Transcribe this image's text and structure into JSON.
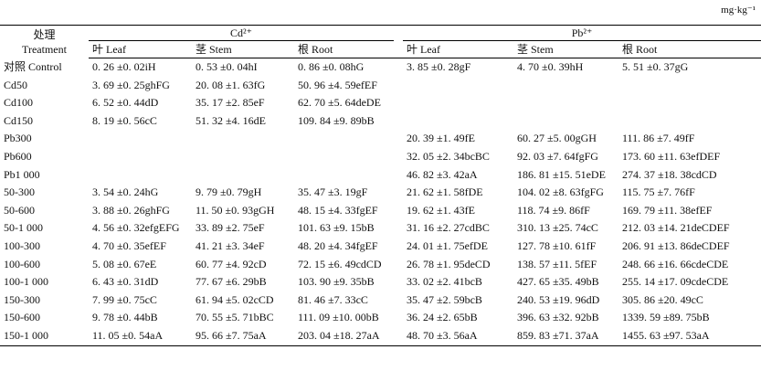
{
  "unit": "mg·kg⁻¹",
  "header": {
    "treatment_cn": "处理",
    "treatment_en": "Treatment",
    "groups": [
      "Cd²⁺",
      "Pb²⁺"
    ],
    "columns": [
      "叶 Leaf",
      "茎 Stem",
      "根 Root",
      "叶 Leaf",
      "茎 Stem",
      "根 Root"
    ]
  },
  "table": {
    "rows": [
      [
        "对照 Control",
        "0. 26 ±0. 02iH",
        "0. 53 ±0. 04hI",
        "0. 86 ±0. 08hG",
        "3. 85 ±0. 28gF",
        "4. 70 ±0. 39hH",
        "5. 51 ±0. 37gG"
      ],
      [
        "Cd50",
        "3. 69 ±0. 25ghFG",
        "20. 08 ±1. 63fG",
        "50. 96 ±4. 59efEF",
        null,
        null,
        null
      ],
      [
        "Cd100",
        "6. 52 ±0. 44dD",
        "35. 17 ±2. 85eF",
        "62. 70 ±5. 64deDE",
        null,
        null,
        null
      ],
      [
        "Cd150",
        "8. 19 ±0. 56cC",
        "51. 32 ±4. 16dE",
        "109. 84 ±9. 89bB",
        null,
        null,
        null
      ],
      [
        "Pb300",
        null,
        null,
        null,
        "20. 39 ±1. 49fE",
        "60. 27 ±5. 00gGH",
        "111. 86 ±7. 49fF"
      ],
      [
        "Pb600",
        null,
        null,
        null,
        "32. 05 ±2. 34bcBC",
        "92. 03 ±7. 64fgFG",
        "173. 60 ±11. 63efDEF"
      ],
      [
        "Pb1 000",
        null,
        null,
        null,
        "46. 82 ±3. 42aA",
        "186. 81 ±15. 51eDE",
        "274. 37 ±18. 38cdCD"
      ],
      [
        "50-300",
        "3. 54 ±0. 24hG",
        "9. 79 ±0. 79gH",
        "35. 47 ±3. 19gF",
        "21. 62 ±1. 58fDE",
        "104. 02 ±8. 63fgFG",
        "115. 75 ±7. 76fF"
      ],
      [
        "50-600",
        "3. 88 ±0. 26ghFG",
        "11. 50 ±0. 93gGH",
        "48. 15 ±4. 33fgEF",
        "19. 62 ±1. 43fE",
        "118. 74 ±9. 86fF",
        "169. 79 ±11. 38efEF"
      ],
      [
        "50-1 000",
        "4. 56 ±0. 32efgEFG",
        "33. 89 ±2. 75eF",
        "101. 63 ±9. 15bB",
        "31. 16 ±2. 27cdBC",
        "310. 13 ±25. 74cC",
        "212. 03 ±14. 21deCDEF"
      ],
      [
        "100-300",
        "4. 70 ±0. 35efEF",
        "41. 21 ±3. 34eF",
        "48. 20 ±4. 34fgEF",
        "24. 01 ±1. 75efDE",
        "127. 78 ±10. 61fF",
        "206. 91 ±13. 86deCDEF"
      ],
      [
        "100-600",
        "5. 08 ±0. 67eE",
        "60. 77 ±4. 92cD",
        "72. 15 ±6. 49cdCD",
        "26. 78 ±1. 95deCD",
        "138. 57 ±11. 5fEF",
        "248. 66 ±16. 66cdeCDE"
      ],
      [
        "100-1 000",
        "6. 43 ±0. 31dD",
        "77. 67 ±6. 29bB",
        "103. 90 ±9. 35bB",
        "33. 02 ±2. 41bcB",
        "427. 65 ±35. 49bB",
        "255. 14 ±17. 09cdeCDE"
      ],
      [
        "150-300",
        "7. 99 ±0. 75cC",
        "61. 94 ±5. 02cCD",
        "81. 46 ±7. 33cC",
        "35. 47 ±2. 59bcB",
        "240. 53 ±19. 96dD",
        "305. 86 ±20. 49cC"
      ],
      [
        "150-600",
        "9. 78 ±0. 44bB",
        "70. 55 ±5. 71bBC",
        "111. 09 ±10. 00bB",
        "36. 24 ±2. 65bB",
        "396. 63 ±32. 92bB",
        "1339. 59 ±89. 75bB"
      ],
      [
        "150-1 000",
        "11. 05 ±0. 54aA",
        "95. 66 ±7. 75aA",
        "203. 04 ±18. 27aA",
        "48. 70 ±3. 56aA",
        "859. 83 ±71. 37aA",
        "1455. 63 ±97. 53aA"
      ]
    ]
  }
}
